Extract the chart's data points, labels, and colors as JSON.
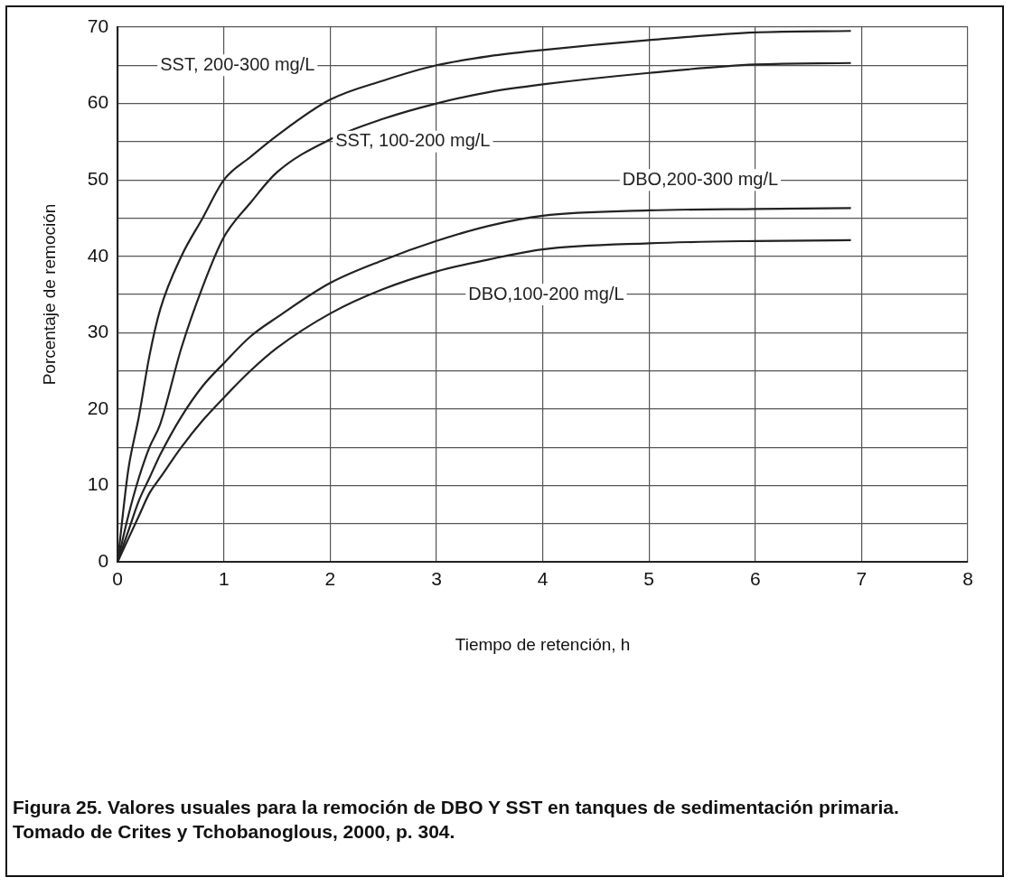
{
  "chart_data": {
    "type": "line",
    "xlabel": "Tiempo de retención, h",
    "ylabel": "Porcentaje de remoción",
    "x": [
      0,
      0.1,
      0.2,
      0.3,
      0.4,
      0.6,
      0.8,
      1,
      1.25,
      1.5,
      2,
      2.5,
      3,
      3.5,
      4,
      5,
      6,
      6.9
    ],
    "series": [
      {
        "name": "SST, 200-300 mg/L",
        "color": "#222222",
        "values": [
          0,
          12,
          19,
          27,
          33,
          40,
          45,
          50,
          53,
          55.8,
          60.5,
          63,
          65,
          66.2,
          67,
          68.3,
          69.3,
          69.5
        ]
      },
      {
        "name": "SST, 100-200 mg/L",
        "color": "#222222",
        "values": [
          0,
          6,
          11,
          15,
          18,
          28,
          36,
          42.5,
          47,
          51,
          55.3,
          58,
          60,
          61.5,
          62.5,
          64,
          65.1,
          65.3
        ]
      },
      {
        "name": "DBO,200-300 mg/L",
        "color": "#222222",
        "values": [
          0,
          4,
          8,
          11,
          14,
          19,
          23,
          26,
          29.5,
          32,
          36.5,
          39.5,
          42,
          44,
          45.3,
          46,
          46.2,
          46.3
        ]
      },
      {
        "name": "DBO,100-200 mg/L",
        "color": "#222222",
        "values": [
          0,
          3,
          6,
          9,
          11,
          15,
          18.5,
          21.5,
          25,
          28,
          32.5,
          35.7,
          38,
          39.6,
          40.9,
          41.7,
          42,
          42.1
        ]
      }
    ],
    "xlim": [
      0,
      8
    ],
    "xticks": [
      0,
      1,
      2,
      3,
      4,
      5,
      6,
      7,
      8
    ],
    "ylim": [
      0,
      70
    ],
    "yticks": [
      0,
      {
        "value": 5,
        "label": null
      },
      10,
      {
        "value": 15,
        "label": null
      },
      20,
      {
        "value": 25,
        "label": null
      },
      30,
      {
        "value": 35,
        "label": null
      },
      40,
      {
        "value": 45,
        "label": null
      },
      50,
      {
        "value": 55,
        "label": null
      },
      60,
      {
        "value": 65,
        "label": null
      },
      70
    ],
    "grid": true,
    "marker": "none",
    "line_style": "solid",
    "legend": false,
    "annotations": [
      "Figura 25.  Valores usuales para la remoción de DBO Y SST en tanques de sedimentación primaria.",
      "Tomado de Crites y Tchobanoglous, 2000, p. 304."
    ]
  }
}
